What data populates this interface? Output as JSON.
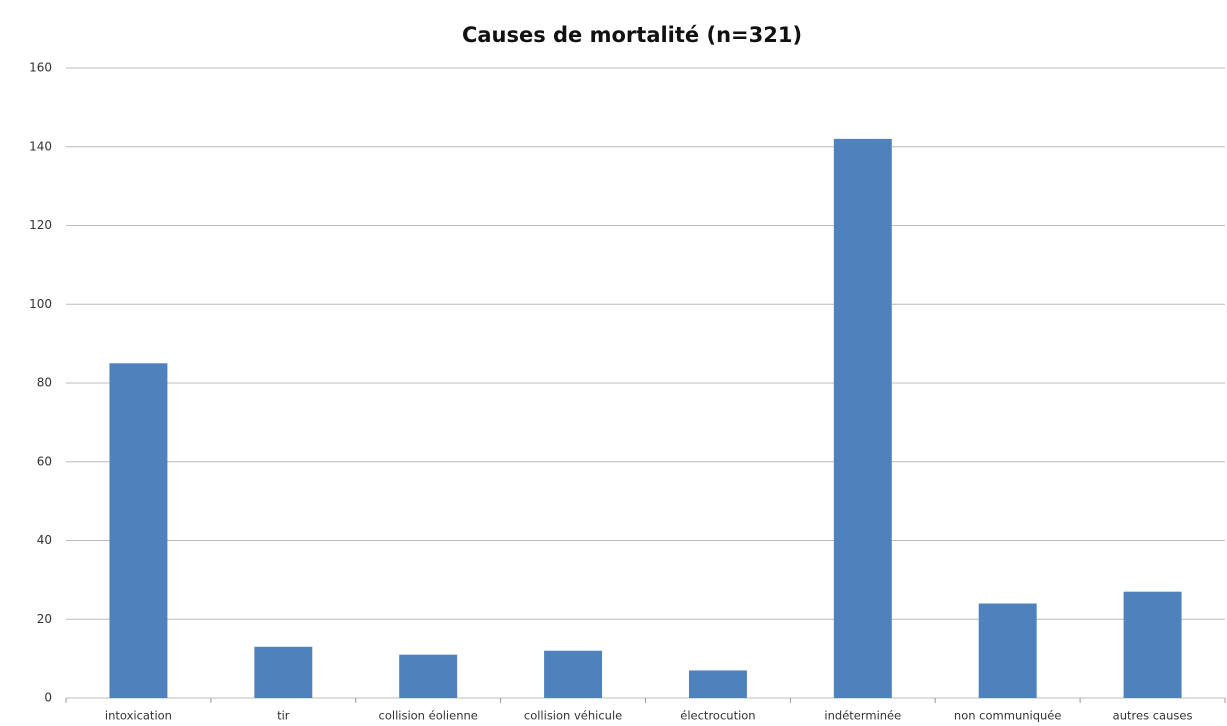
{
  "chart_data": {
    "type": "bar",
    "title": "Causes de mortalité (n=321)",
    "categories": [
      "intoxication",
      "tir",
      "collision éolienne",
      "collision véhicule",
      "électrocution",
      "indéterminée",
      "non communiquée",
      "autres causes"
    ],
    "values": [
      85,
      13,
      11,
      12,
      7,
      142,
      24,
      27
    ],
    "color": "#4f81bd",
    "ylim": [
      0,
      160
    ],
    "yticks": [
      0,
      20,
      40,
      60,
      80,
      100,
      120,
      140,
      160
    ],
    "grid": true
  }
}
